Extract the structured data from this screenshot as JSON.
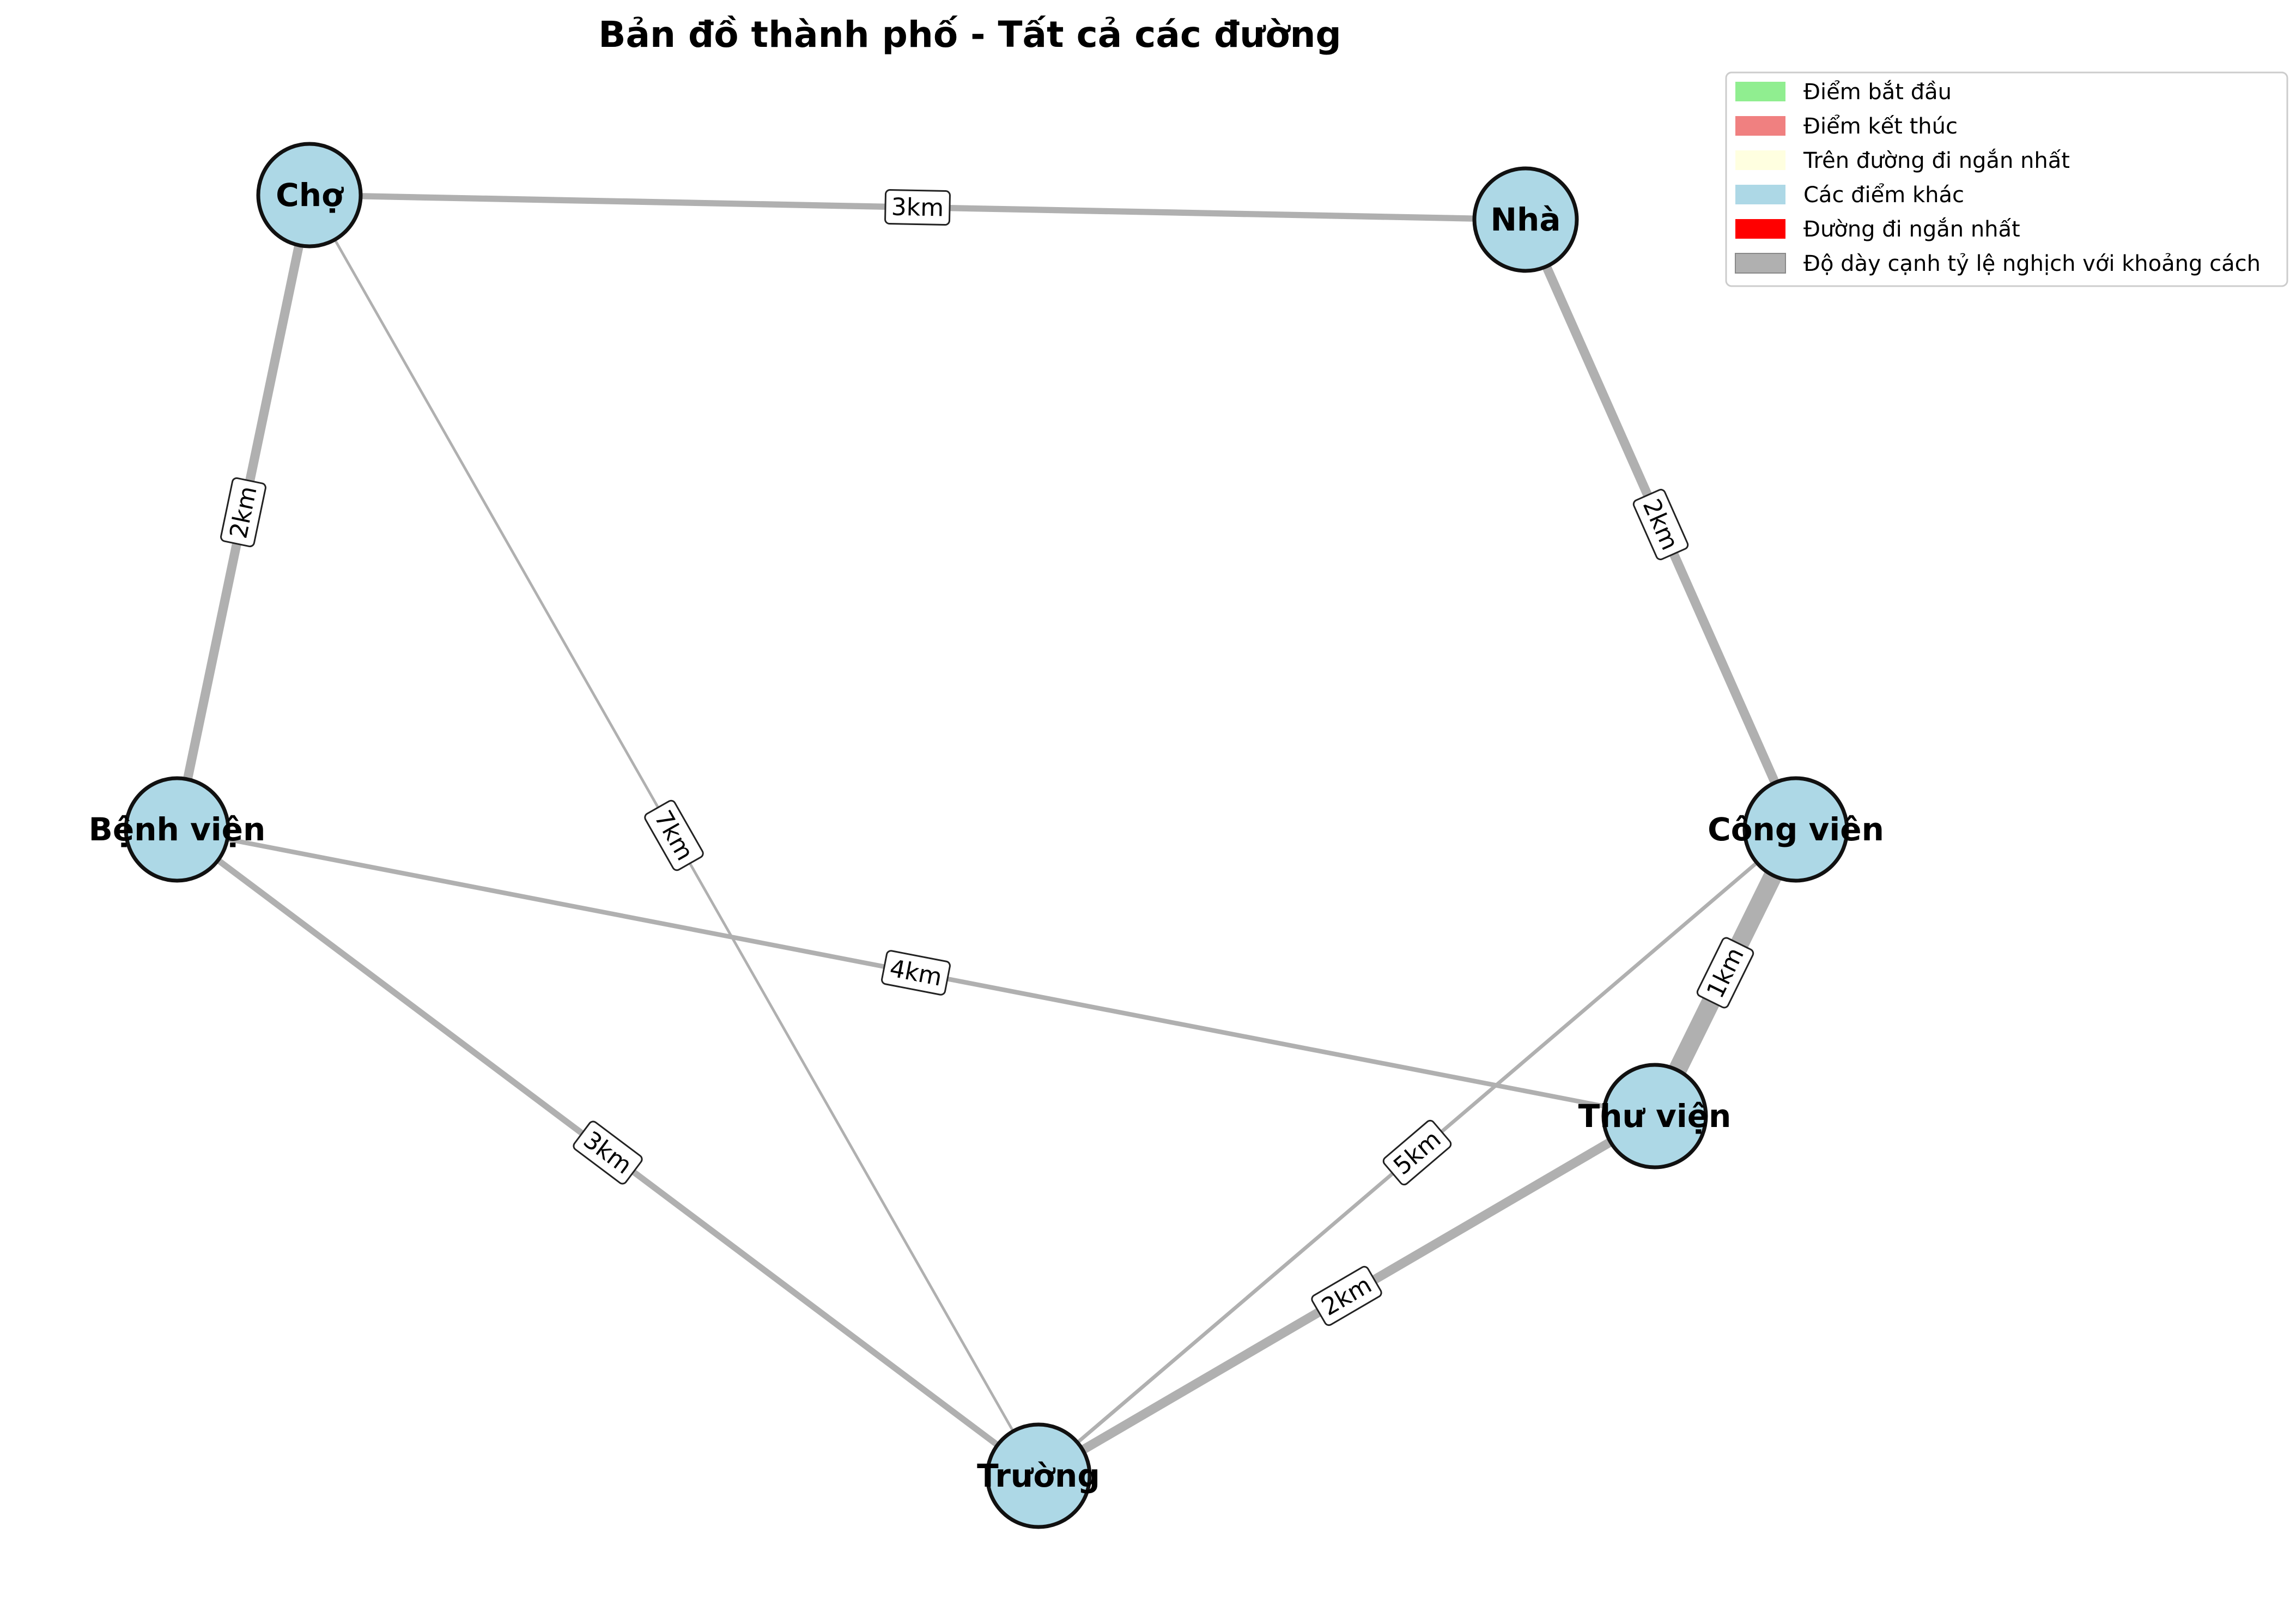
{
  "title": "Bản đồ thành phố - Tất cả các đường",
  "nodes": [
    {
      "id": "cho",
      "label": "Chợ"
    },
    {
      "id": "nha",
      "label": "Nhà"
    },
    {
      "id": "benh_vien",
      "label": "Bệnh viện"
    },
    {
      "id": "cong_vien",
      "label": "Công viên"
    },
    {
      "id": "thu_vien",
      "label": "Thư viện"
    },
    {
      "id": "truong",
      "label": "Trường"
    }
  ],
  "edges": [
    {
      "from": "cho",
      "to": "nha",
      "distance_km": 3,
      "label": "3km"
    },
    {
      "from": "cho",
      "to": "benh_vien",
      "distance_km": 2,
      "label": "2km"
    },
    {
      "from": "cho",
      "to": "truong",
      "distance_km": 7,
      "label": "7km"
    },
    {
      "from": "nha",
      "to": "cong_vien",
      "distance_km": 2,
      "label": "2km"
    },
    {
      "from": "benh_vien",
      "to": "thu_vien",
      "distance_km": 4,
      "label": "4km"
    },
    {
      "from": "benh_vien",
      "to": "truong",
      "distance_km": 3,
      "label": "3km"
    },
    {
      "from": "cong_vien",
      "to": "thu_vien",
      "distance_km": 1,
      "label": "1km"
    },
    {
      "from": "cong_vien",
      "to": "truong",
      "distance_km": 5,
      "label": "5km"
    },
    {
      "from": "thu_vien",
      "to": "truong",
      "distance_km": 2,
      "label": "2km"
    }
  ],
  "legend": [
    {
      "label": "Điểm bắt đầu",
      "color": "#90ee90"
    },
    {
      "label": "Điểm kết thúc",
      "color": "#f08080"
    },
    {
      "label": "Trên đường đi ngắn nhất",
      "color": "#ffffe0"
    },
    {
      "label": "Các điểm khác",
      "color": "#add8e6"
    },
    {
      "label": "Đường đi ngắn nhất",
      "color": "#ff0000"
    },
    {
      "label": "Độ dày cạnh tỷ lệ nghịch với khoảng cách",
      "color": "#b0b0b0"
    }
  ],
  "colors": {
    "node_fill": "#add8e6",
    "edge": "#b0b0b0"
  }
}
